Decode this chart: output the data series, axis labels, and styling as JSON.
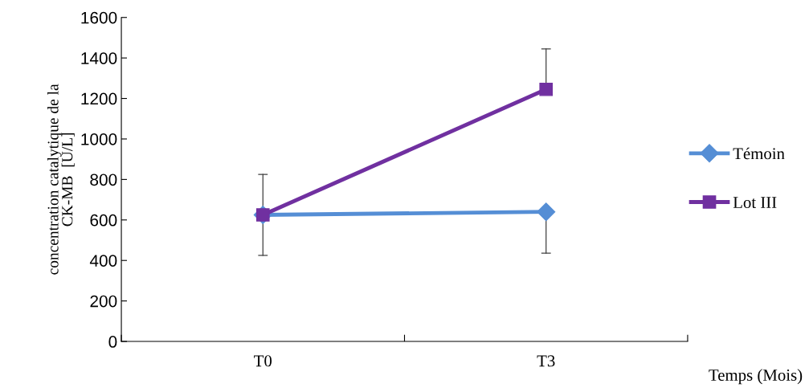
{
  "chart_data": {
    "type": "line",
    "xlabel": "Temps (Mois)",
    "ylabel": "concentration catalytique de la\nCK-MB  [U/L]",
    "categories": [
      "T0",
      "T3"
    ],
    "series": [
      {
        "name": "Témoin",
        "color": "#558ed5",
        "marker": "diamond",
        "values": [
          625,
          640
        ],
        "errors": [
          [
            425,
            625
          ],
          [
            436,
            640
          ]
        ]
      },
      {
        "name": "Lot III",
        "color": "#7030a0",
        "marker": "square",
        "values": [
          625,
          1245
        ],
        "errors": [
          [
            625,
            825
          ],
          [
            1245,
            1445
          ]
        ]
      }
    ],
    "ylim": [
      0,
      1600
    ],
    "yticks": [
      0,
      200,
      400,
      600,
      800,
      1000,
      1200,
      1400,
      1600
    ],
    "grid": false,
    "legend": "right",
    "line_style": "solid"
  }
}
